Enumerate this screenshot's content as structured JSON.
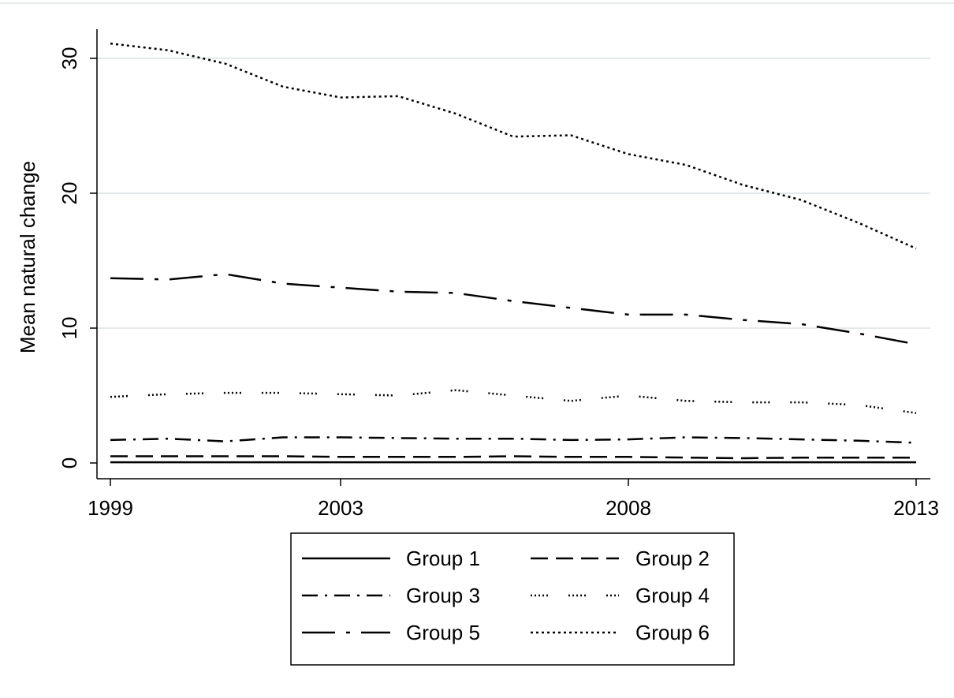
{
  "chart_data": {
    "type": "line",
    "title": "",
    "xlabel": "",
    "ylabel": "Mean natural change",
    "x": [
      1999,
      2000,
      2001,
      2002,
      2003,
      2004,
      2005,
      2006,
      2007,
      2008,
      2009,
      2010,
      2011,
      2012,
      2013
    ],
    "xticks": [
      1999,
      2003,
      2008,
      2013
    ],
    "yticks": [
      0,
      10,
      20,
      30
    ],
    "xlim": [
      1999,
      2013
    ],
    "ylim": [
      -1.2,
      32.2
    ],
    "grid": "horizontal",
    "legend_position": "bottom",
    "series": [
      {
        "name": "Group 1",
        "style": "solid",
        "values": [
          0.05,
          0.05,
          0.05,
          0.05,
          0.05,
          0.05,
          0.05,
          0.05,
          0.05,
          0.05,
          0.05,
          0.05,
          0.05,
          0.05,
          0.05
        ]
      },
      {
        "name": "Group 2",
        "style": "dash",
        "values": [
          0.5,
          0.5,
          0.5,
          0.5,
          0.45,
          0.45,
          0.45,
          0.5,
          0.45,
          0.45,
          0.4,
          0.35,
          0.4,
          0.4,
          0.4
        ]
      },
      {
        "name": "Group 3",
        "style": "dash-dot-dot",
        "values": [
          1.7,
          1.8,
          1.6,
          1.9,
          1.9,
          1.85,
          1.8,
          1.8,
          1.7,
          1.75,
          1.9,
          1.85,
          1.75,
          1.65,
          1.5
        ]
      },
      {
        "name": "Group 4",
        "style": "dotted-sparse",
        "values": [
          4.9,
          5.1,
          5.2,
          5.2,
          5.1,
          5.0,
          5.4,
          5.0,
          4.6,
          5.0,
          4.6,
          4.5,
          4.5,
          4.3,
          3.7
        ]
      },
      {
        "name": "Group 5",
        "style": "long-dash-dot",
        "values": [
          13.7,
          13.6,
          14.0,
          13.3,
          13.0,
          12.7,
          12.6,
          12.0,
          11.5,
          11.0,
          11.0,
          10.6,
          10.3,
          9.6,
          8.8
        ]
      },
      {
        "name": "Group 6",
        "style": "short-dot",
        "values": [
          31.1,
          30.6,
          29.6,
          27.9,
          27.1,
          27.2,
          25.9,
          24.2,
          24.3,
          22.9,
          22.1,
          20.6,
          19.5,
          17.8,
          15.9
        ]
      }
    ]
  }
}
